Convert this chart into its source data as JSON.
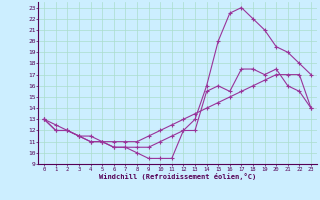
{
  "xlabel": "Windchill (Refroidissement éolien,°C)",
  "bg_color": "#cceeff",
  "grid_color": "#aaddcc",
  "line_color": "#993399",
  "xlim": [
    -0.5,
    23.5
  ],
  "ylim": [
    9,
    23.5
  ],
  "xticks": [
    0,
    1,
    2,
    3,
    4,
    5,
    6,
    7,
    8,
    9,
    10,
    11,
    12,
    13,
    14,
    15,
    16,
    17,
    18,
    19,
    20,
    21,
    22,
    23
  ],
  "yticks": [
    9,
    10,
    11,
    12,
    13,
    14,
    15,
    16,
    17,
    18,
    19,
    20,
    21,
    22,
    23
  ],
  "curve1_x": [
    0,
    1,
    2,
    3,
    4,
    5,
    6,
    7,
    8,
    9,
    10,
    11,
    12,
    13,
    14,
    15,
    16,
    17,
    18,
    19,
    20,
    21,
    22,
    23
  ],
  "curve1_y": [
    13,
    12,
    12,
    11.5,
    11,
    11,
    10.5,
    10.5,
    10,
    9.5,
    9.5,
    9.5,
    12,
    12,
    15.5,
    16,
    15.5,
    17.5,
    17.5,
    17,
    17.5,
    16,
    15.5,
    14
  ],
  "curve2_x": [
    0,
    1,
    2,
    3,
    4,
    5,
    6,
    7,
    8,
    9,
    10,
    11,
    12,
    13,
    14,
    15,
    16,
    17,
    18,
    19,
    20,
    21,
    22,
    23
  ],
  "curve2_y": [
    13,
    12,
    12,
    11.5,
    11.5,
    11,
    10.5,
    10.5,
    10.5,
    10.5,
    11,
    11.5,
    12,
    13,
    16,
    20,
    22.5,
    23,
    22,
    21,
    19.5,
    19,
    18,
    17
  ],
  "curve3_x": [
    0,
    1,
    2,
    3,
    4,
    5,
    6,
    7,
    8,
    9,
    10,
    11,
    12,
    13,
    14,
    15,
    16,
    17,
    18,
    19,
    20,
    21,
    22,
    23
  ],
  "curve3_y": [
    13,
    12.5,
    12,
    11.5,
    11,
    11,
    11,
    11,
    11,
    11.5,
    12,
    12.5,
    13,
    13.5,
    14,
    14.5,
    15,
    15.5,
    16,
    16.5,
    17,
    17,
    17,
    14
  ]
}
